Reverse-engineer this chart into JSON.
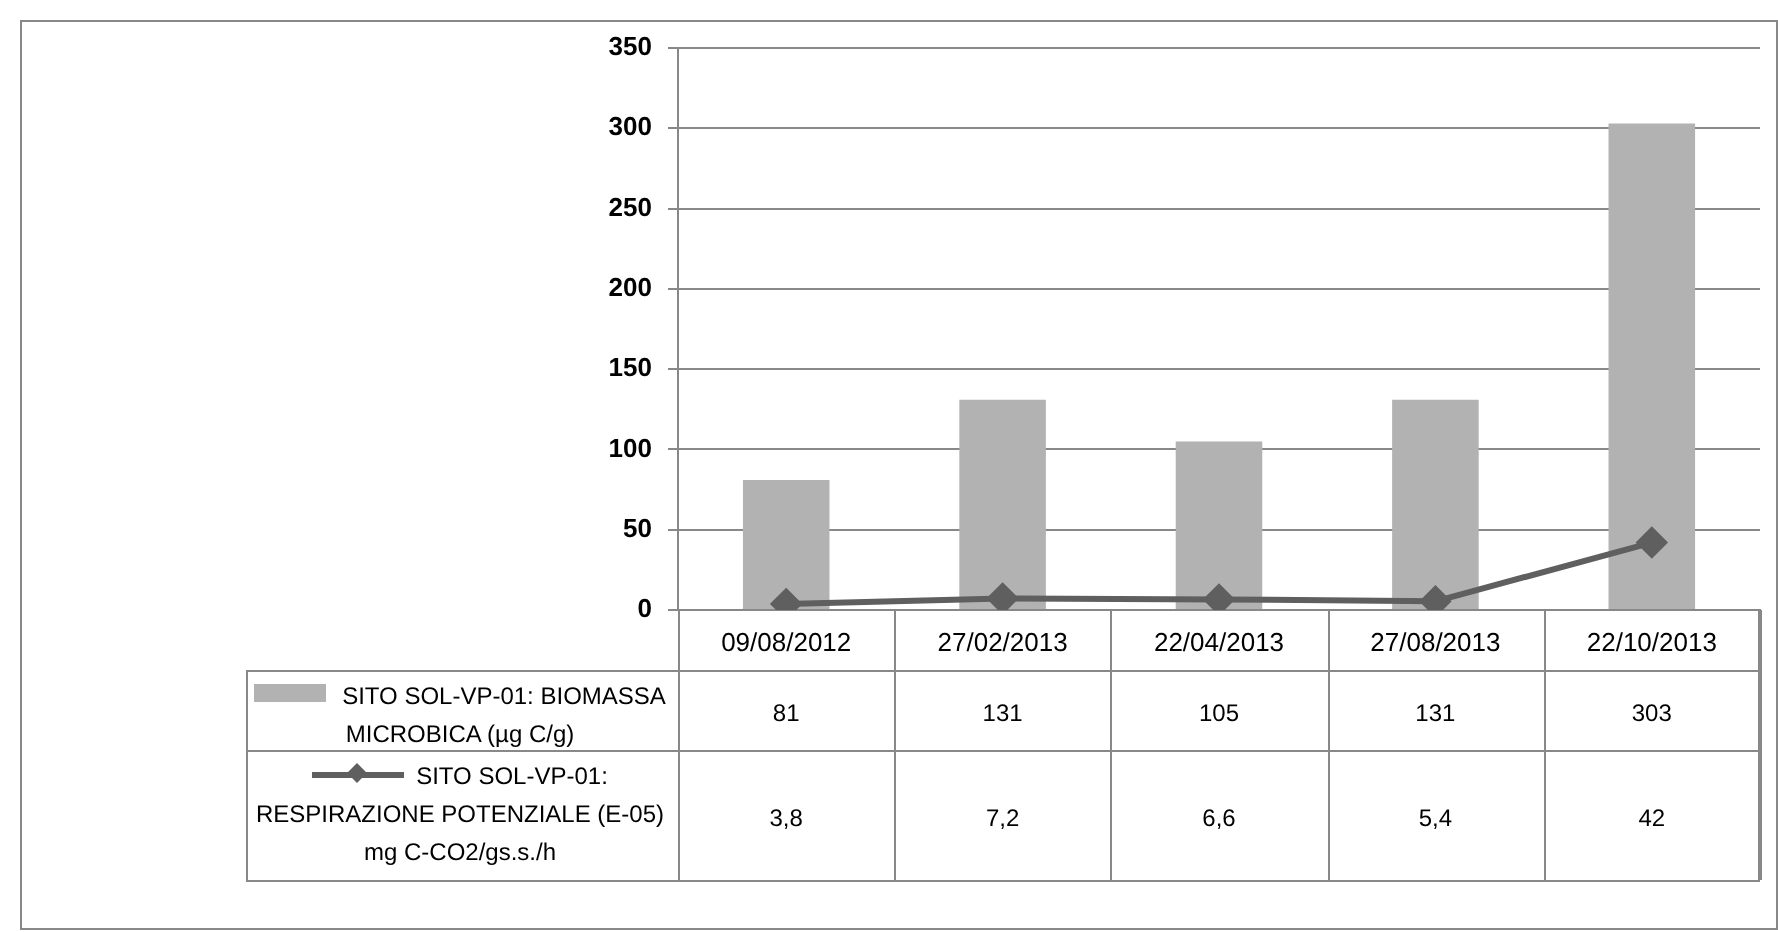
{
  "chart_data": {
    "type": "bar",
    "categories": [
      "09/08/2012",
      "27/02/2013",
      "22/04/2013",
      "27/08/2013",
      "22/10/2013"
    ],
    "series": [
      {
        "name": "SITO SOL-VP-01: BIOMASSA MICROBICA (µg C/g)",
        "color": "#b2b2b2",
        "values": [
          81,
          131,
          105,
          131,
          303
        ],
        "value_labels": [
          "81",
          "131",
          "105",
          "131",
          "303"
        ]
      },
      {
        "name": "SITO SOL-VP-01: RESPIRAZIONE POTENZIALE (E-05) mg C-CO2/gs.s./h",
        "type": "line",
        "color": "#5f5f5f",
        "values": [
          3.8,
          7.2,
          6.6,
          5.4,
          42
        ],
        "value_labels": [
          "3,8",
          "7,2",
          "6,6",
          "5,4",
          "42"
        ]
      }
    ],
    "ylim": [
      0,
      350
    ],
    "yticks": [
      0,
      50,
      100,
      150,
      200,
      250,
      300,
      350
    ],
    "grid": "y",
    "legend": "bottom",
    "marker": "diamond",
    "line_style": "solid"
  }
}
